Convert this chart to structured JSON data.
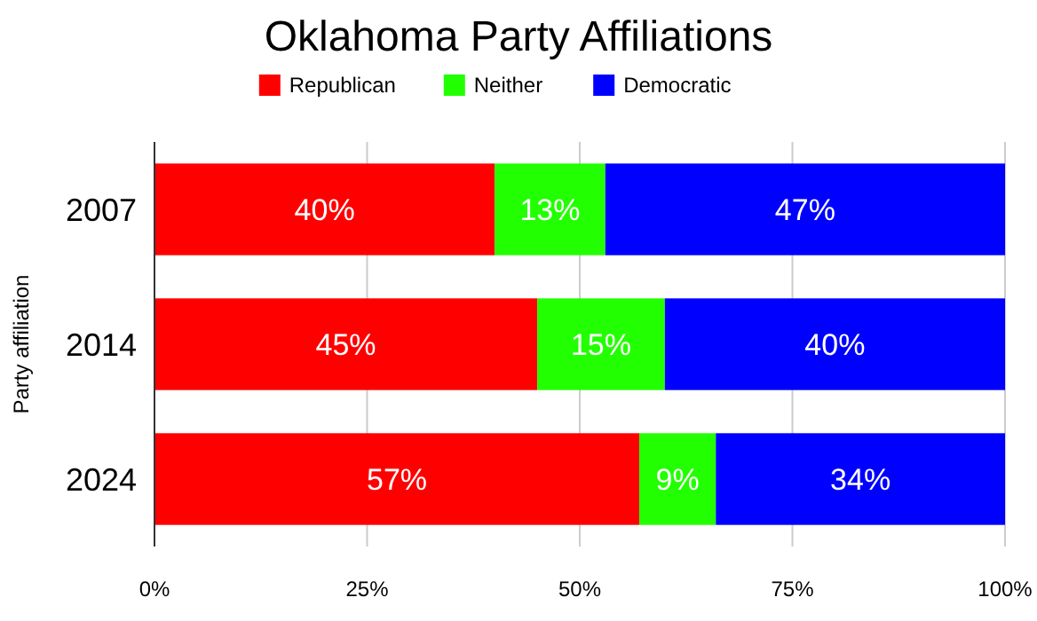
{
  "chart_data": {
    "type": "bar",
    "orientation": "horizontal",
    "stacked": true,
    "title": "Oklahoma Party Affiliations",
    "ylabel": "Party affiliation",
    "categories": [
      "2007",
      "2014",
      "2024"
    ],
    "series": [
      {
        "name": "Republican",
        "color": "#ff0000",
        "values": [
          40,
          45,
          57
        ],
        "value_labels": [
          "40%",
          "45%",
          "57%"
        ]
      },
      {
        "name": "Neither",
        "color": "#22ff00",
        "values": [
          13,
          15,
          9
        ],
        "value_labels": [
          "13%",
          "15%",
          "9%"
        ]
      },
      {
        "name": "Democratic",
        "color": "#0000ff",
        "values": [
          47,
          40,
          34
        ],
        "value_labels": [
          "47%",
          "40%",
          "34%"
        ]
      }
    ],
    "xlim": [
      0,
      100
    ],
    "xticks": [
      {
        "value": 0,
        "label": "0%"
      },
      {
        "value": 25,
        "label": "25%"
      },
      {
        "value": 50,
        "label": "50%"
      },
      {
        "value": 75,
        "label": "75%"
      },
      {
        "value": 100,
        "label": "100%"
      }
    ],
    "grid": "x",
    "legend": "top"
  }
}
